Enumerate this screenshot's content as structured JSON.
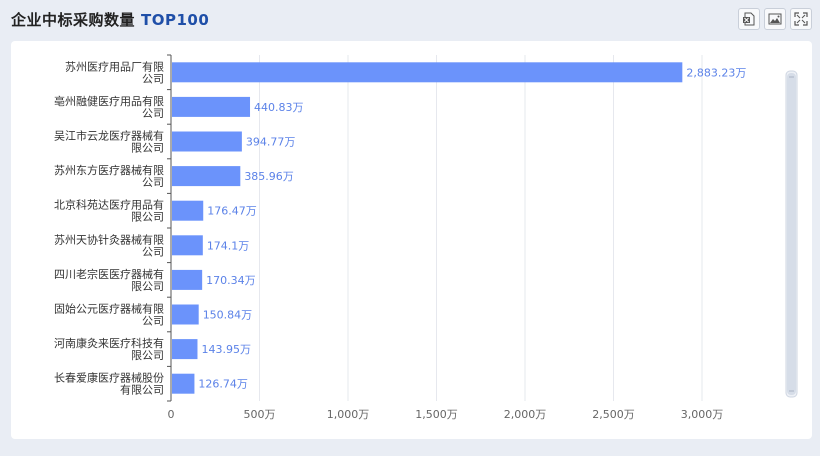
{
  "header": {
    "title": "企业中标采购数量",
    "tag": "TOP100"
  },
  "toolbar": {
    "icons": [
      "excel-export-icon",
      "image-export-icon",
      "fullscreen-icon"
    ]
  },
  "colors": {
    "bar": "#6b93fb",
    "label": "#5b82e8",
    "axis_text": "#666666",
    "category_text": "#333333",
    "grid": "#e6e8ee",
    "scrollbar": "#d6dde8"
  },
  "chart_data": {
    "type": "bar",
    "orientation": "horizontal",
    "categories": [
      [
        "苏州医疗用品厂有限",
        "公司"
      ],
      [
        "亳州融健医疗用品有限",
        "公司"
      ],
      [
        "吴江市云龙医疗器械有",
        "限公司"
      ],
      [
        "苏州东方医疗器械有限",
        "公司"
      ],
      [
        "北京科苑达医疗用品有",
        "限公司"
      ],
      [
        "苏州天协针灸器械有限",
        "公司"
      ],
      [
        "四川老宗医医疗器械有",
        "限公司"
      ],
      [
        "固始公元医疗器械有限",
        "公司"
      ],
      [
        "河南康灸来医疗科技有",
        "限公司"
      ],
      [
        "长春爱康医疗器械股份",
        "有限公司"
      ]
    ],
    "values": [
      2883.23,
      440.83,
      394.77,
      385.96,
      176.47,
      174.1,
      170.34,
      150.84,
      143.95,
      126.74
    ],
    "value_labels": [
      "2,883.23万",
      "440.83万",
      "394.77万",
      "385.96万",
      "176.47万",
      "174.1万",
      "170.34万",
      "150.84万",
      "143.95万",
      "126.74万"
    ],
    "xticks": [
      0,
      500,
      1000,
      1500,
      2000,
      2500,
      3000
    ],
    "xtick_labels": [
      "0",
      "500万",
      "1,000万",
      "1,500万",
      "2,000万",
      "2,500万",
      "3,000万"
    ],
    "xlim": [
      0,
      3000
    ],
    "grid": true
  }
}
